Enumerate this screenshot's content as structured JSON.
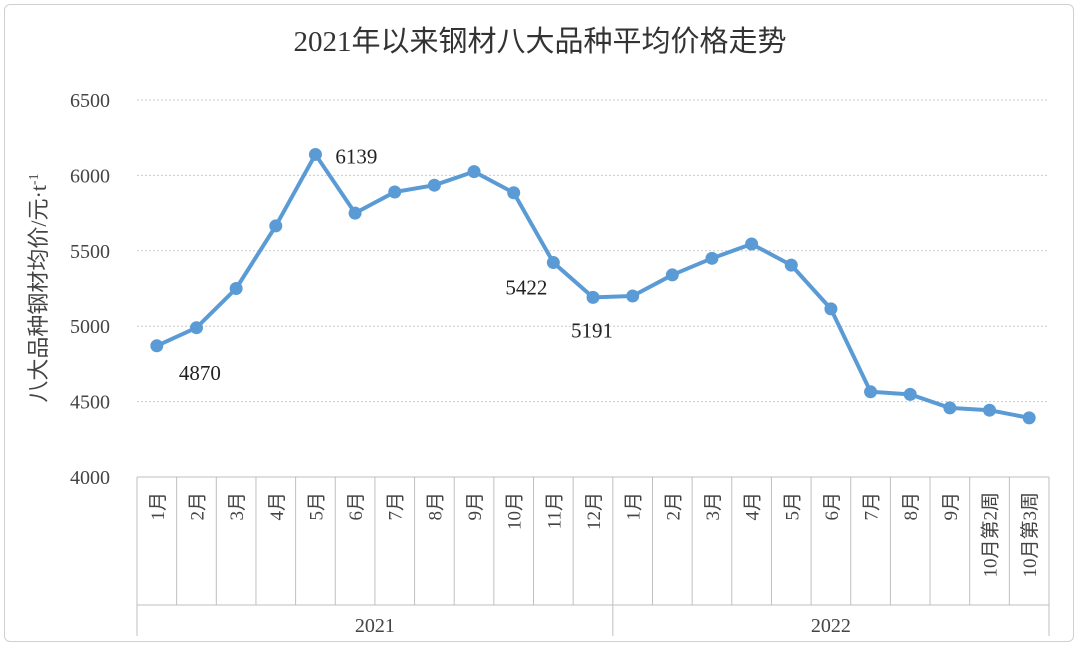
{
  "chart_data": {
    "type": "line",
    "title": "2021年以来钢材八大品种平均价格走势",
    "ylabel": "八大品种钢材均价/元·t",
    "ylabel_sup": "-1",
    "ylim": [
      4000,
      6500
    ],
    "yticks": [
      4000,
      4500,
      5000,
      5500,
      6000,
      6500
    ],
    "grid": true,
    "series_color": "#5b9bd5",
    "groups": [
      {
        "label": "2021",
        "categories": [
          "1月",
          "2月",
          "3月",
          "4月",
          "5月",
          "6月",
          "7月",
          "8月",
          "9月",
          "10月",
          "11月",
          "12月"
        ]
      },
      {
        "label": "2022",
        "categories": [
          "1月",
          "2月",
          "3月",
          "4月",
          "5月",
          "6月",
          "7月",
          "8月",
          "9月",
          "10月第2周",
          "10月第3周"
        ]
      }
    ],
    "values": [
      4870,
      4990,
      5250,
      5665,
      6139,
      5750,
      5890,
      5935,
      6025,
      5885,
      5422,
      5191,
      5200,
      5340,
      5450,
      5545,
      5405,
      5115,
      4565,
      4548,
      4458,
      4443,
      4392
    ],
    "data_labels": [
      {
        "index": 0,
        "text": "4870",
        "pos": "below-right"
      },
      {
        "index": 4,
        "text": "6139",
        "pos": "right"
      },
      {
        "index": 10,
        "text": "5422",
        "pos": "below-left"
      },
      {
        "index": 11,
        "text": "5191",
        "pos": "below"
      }
    ]
  }
}
